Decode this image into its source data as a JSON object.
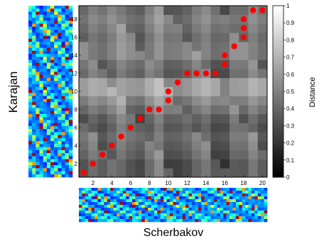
{
  "chart_data": {
    "type": "heatmap",
    "title": "",
    "xlabel": "Scherbakov",
    "ylabel": "Karajan",
    "xlim": [
      0.5,
      20.5
    ],
    "ylim": [
      0.5,
      19.5
    ],
    "x_ticks": [
      2,
      4,
      6,
      8,
      10,
      12,
      14,
      16,
      18,
      20
    ],
    "y_ticks": [
      2,
      4,
      6,
      8,
      10,
      12,
      14,
      16,
      18
    ],
    "colorbar": {
      "label": "Distance",
      "range": [
        0,
        1
      ],
      "ticks": [
        0,
        0.1,
        0.2,
        0.3,
        0.4,
        0.5,
        0.6,
        0.7,
        0.8,
        0.9,
        1
      ],
      "tick_labels": [
        "0",
        "0.1",
        "0.2",
        "0.3",
        "0.4",
        "0.5",
        "0.6",
        "0.7",
        "0.8",
        "0.9",
        "1"
      ],
      "colormap": "gray"
    },
    "row_profile": [
      0.2,
      0.15,
      0.25,
      0.3,
      0.35,
      0.2,
      0.25,
      0.45,
      0.6,
      0.85,
      0.8,
      0.3,
      0.35,
      0.55,
      0.5,
      0.4,
      0.45,
      0.5,
      0.35
    ],
    "col_profile": [
      0.35,
      0.55,
      0.3,
      0.45,
      0.7,
      0.4,
      0.2,
      0.5,
      0.75,
      0.3,
      0.25,
      0.3,
      0.5,
      0.6,
      0.2,
      0.15,
      0.5,
      0.4,
      0.65,
      0.3
    ],
    "path": {
      "name": "alignment path",
      "color": "#ff0000",
      "points": [
        [
          1,
          1
        ],
        [
          2,
          2
        ],
        [
          3,
          3
        ],
        [
          4,
          4
        ],
        [
          5,
          5
        ],
        [
          6,
          6
        ],
        [
          7,
          7
        ],
        [
          8,
          8
        ],
        [
          9,
          8
        ],
        [
          10,
          9
        ],
        [
          10,
          10
        ],
        [
          11,
          11
        ],
        [
          12,
          12
        ],
        [
          13,
          12
        ],
        [
          14,
          12
        ],
        [
          15,
          12
        ],
        [
          16,
          13
        ],
        [
          16,
          14
        ],
        [
          17,
          15
        ],
        [
          18,
          16
        ],
        [
          18,
          17
        ],
        [
          18,
          18
        ],
        [
          19,
          19
        ],
        [
          20,
          19
        ]
      ]
    }
  },
  "side_feature_left": {
    "bins": 12,
    "frames": 19
  },
  "side_feature_bottom": {
    "bins": 12,
    "frames": 20
  }
}
